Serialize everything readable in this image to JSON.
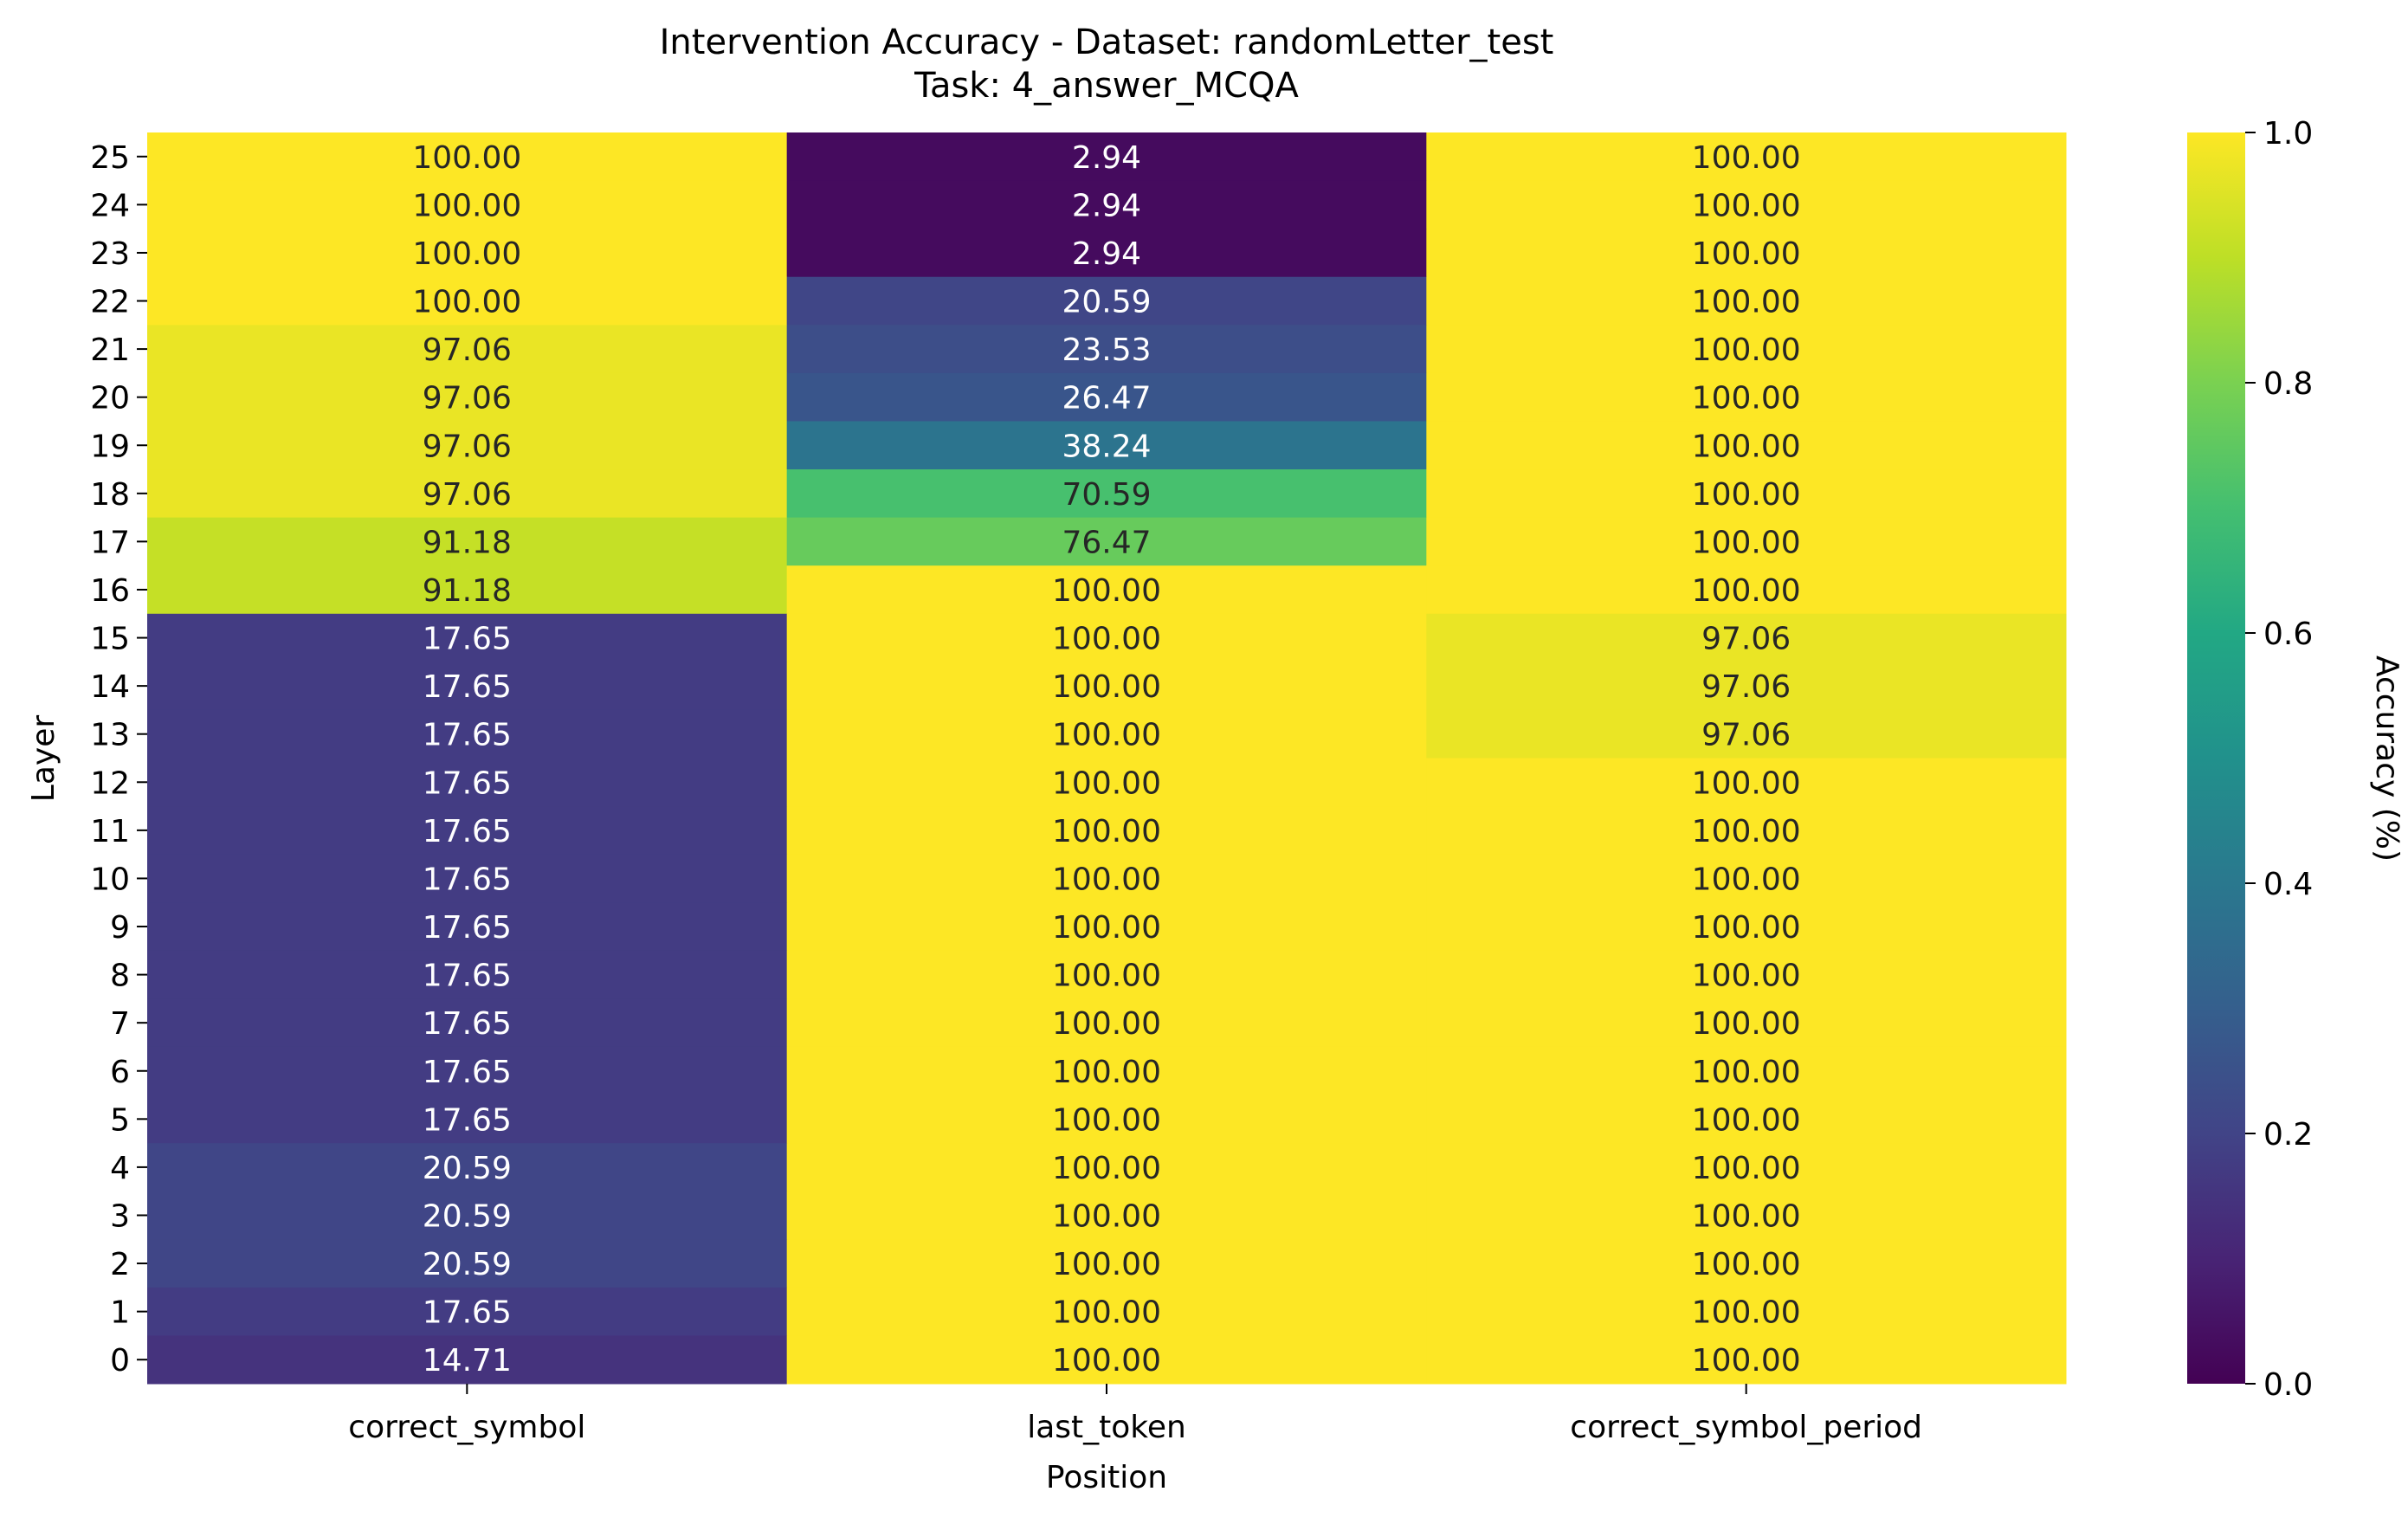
{
  "chart_data": {
    "type": "heatmap",
    "title": "Intervention Accuracy - Dataset: randomLetter_test",
    "subtitle": "Task: 4_answer_MCQA",
    "xlabel": "Position",
    "ylabel": "Layer",
    "colorbar_label": "Accuracy (%)",
    "colormap": "viridis",
    "vlim": [
      0.0,
      1.0
    ],
    "colorbar_ticks": [
      "0.0",
      "0.2",
      "0.4",
      "0.6",
      "0.8",
      "1.0"
    ],
    "columns": [
      "correct_symbol",
      "last_token",
      "correct_symbol_period"
    ],
    "rows": [
      "25",
      "24",
      "23",
      "22",
      "21",
      "20",
      "19",
      "18",
      "17",
      "16",
      "15",
      "14",
      "13",
      "12",
      "11",
      "10",
      "9",
      "8",
      "7",
      "6",
      "5",
      "4",
      "3",
      "2",
      "1",
      "0"
    ],
    "values": [
      [
        100.0,
        2.94,
        100.0
      ],
      [
        100.0,
        2.94,
        100.0
      ],
      [
        100.0,
        2.94,
        100.0
      ],
      [
        100.0,
        20.59,
        100.0
      ],
      [
        97.06,
        23.53,
        100.0
      ],
      [
        97.06,
        26.47,
        100.0
      ],
      [
        97.06,
        38.24,
        100.0
      ],
      [
        97.06,
        70.59,
        100.0
      ],
      [
        91.18,
        76.47,
        100.0
      ],
      [
        91.18,
        100.0,
        100.0
      ],
      [
        17.65,
        100.0,
        97.06
      ],
      [
        17.65,
        100.0,
        97.06
      ],
      [
        17.65,
        100.0,
        97.06
      ],
      [
        17.65,
        100.0,
        100.0
      ],
      [
        17.65,
        100.0,
        100.0
      ],
      [
        17.65,
        100.0,
        100.0
      ],
      [
        17.65,
        100.0,
        100.0
      ],
      [
        17.65,
        100.0,
        100.0
      ],
      [
        17.65,
        100.0,
        100.0
      ],
      [
        17.65,
        100.0,
        100.0
      ],
      [
        17.65,
        100.0,
        100.0
      ],
      [
        20.59,
        100.0,
        100.0
      ],
      [
        20.59,
        100.0,
        100.0
      ],
      [
        20.59,
        100.0,
        100.0
      ],
      [
        17.65,
        100.0,
        100.0
      ],
      [
        14.71,
        100.0,
        100.0
      ]
    ]
  }
}
